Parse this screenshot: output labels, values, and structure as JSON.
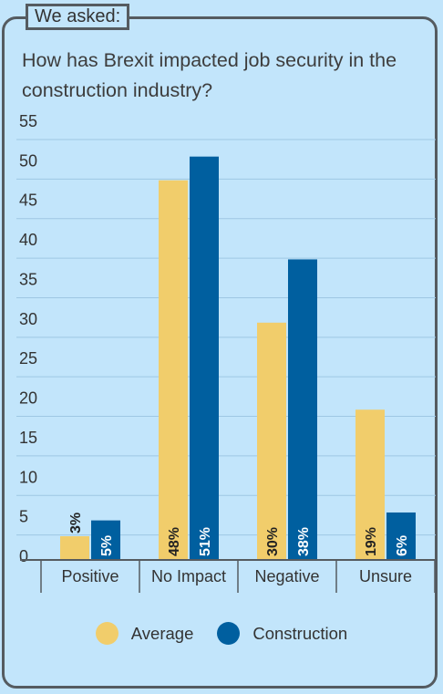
{
  "header": {
    "tag": "We asked:"
  },
  "question": "How has Brexit impacted job security in the construction industry?",
  "chart_data": {
    "type": "bar",
    "categories": [
      "Positive",
      "No Impact",
      "Negative",
      "Unsure"
    ],
    "series": [
      {
        "name": "Average",
        "values": [
          3,
          48,
          30,
          19
        ],
        "labels": [
          "3%",
          "48%",
          "30%",
          "19%"
        ],
        "color": "#f1cd6b"
      },
      {
        "name": "Construction",
        "values": [
          5,
          51,
          38,
          6
        ],
        "labels": [
          "5%",
          "51%",
          "38%",
          "6%"
        ],
        "color": "#005f9f"
      }
    ],
    "yticks": [
      0,
      5,
      10,
      15,
      20,
      25,
      30,
      35,
      40,
      45,
      50,
      55
    ],
    "ylim": [
      0,
      55
    ],
    "grid": true,
    "legend_position": "bottom"
  },
  "colors": {
    "background": "#c2e5fb",
    "gridline": "#9ec7e3",
    "axis": "#555b60",
    "text": "#333333"
  }
}
